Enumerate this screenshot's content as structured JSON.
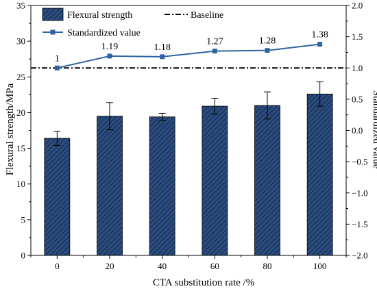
{
  "chart_data": {
    "type": "bar",
    "xlabel": "CTA substitution rate /%",
    "ylabel": "Flexural strength/MPa",
    "y2label": "Standardized value",
    "categories": [
      "0",
      "20",
      "40",
      "60",
      "80",
      "100"
    ],
    "ylim": [
      0,
      35
    ],
    "y2lim": [
      -2.0,
      2.0
    ],
    "yticks": [
      "0",
      "5",
      "10",
      "15",
      "20",
      "25",
      "30",
      "35"
    ],
    "y2ticks": [
      "−2.0",
      "−1.5",
      "−1.0",
      "−0.5",
      "0.0",
      "0.5",
      "1.0",
      "1.5",
      "2.0"
    ],
    "grid": false,
    "legend_position": "top",
    "series": [
      {
        "name": "Flexural strength",
        "kind": "bar",
        "axis": "left",
        "pattern": "diagonal-hatch",
        "color": "#2B4C7E",
        "values": [
          16.4,
          19.5,
          19.4,
          20.9,
          21.0,
          22.6
        ],
        "error": [
          1.0,
          1.9,
          0.5,
          1.1,
          1.9,
          1.7
        ]
      },
      {
        "name": "Standardized value",
        "kind": "line",
        "axis": "right",
        "marker": "square",
        "color": "#2F64A3",
        "values": [
          1.0,
          1.19,
          1.18,
          1.27,
          1.28,
          1.38
        ],
        "labels": [
          "1",
          "1.19",
          "1.18",
          "1.27",
          "1.28",
          "1.38"
        ]
      },
      {
        "name": "Baseline",
        "kind": "hline",
        "axis": "right",
        "linestyle": "dash-dot",
        "color": "#000000",
        "value": 1.0
      }
    ]
  }
}
